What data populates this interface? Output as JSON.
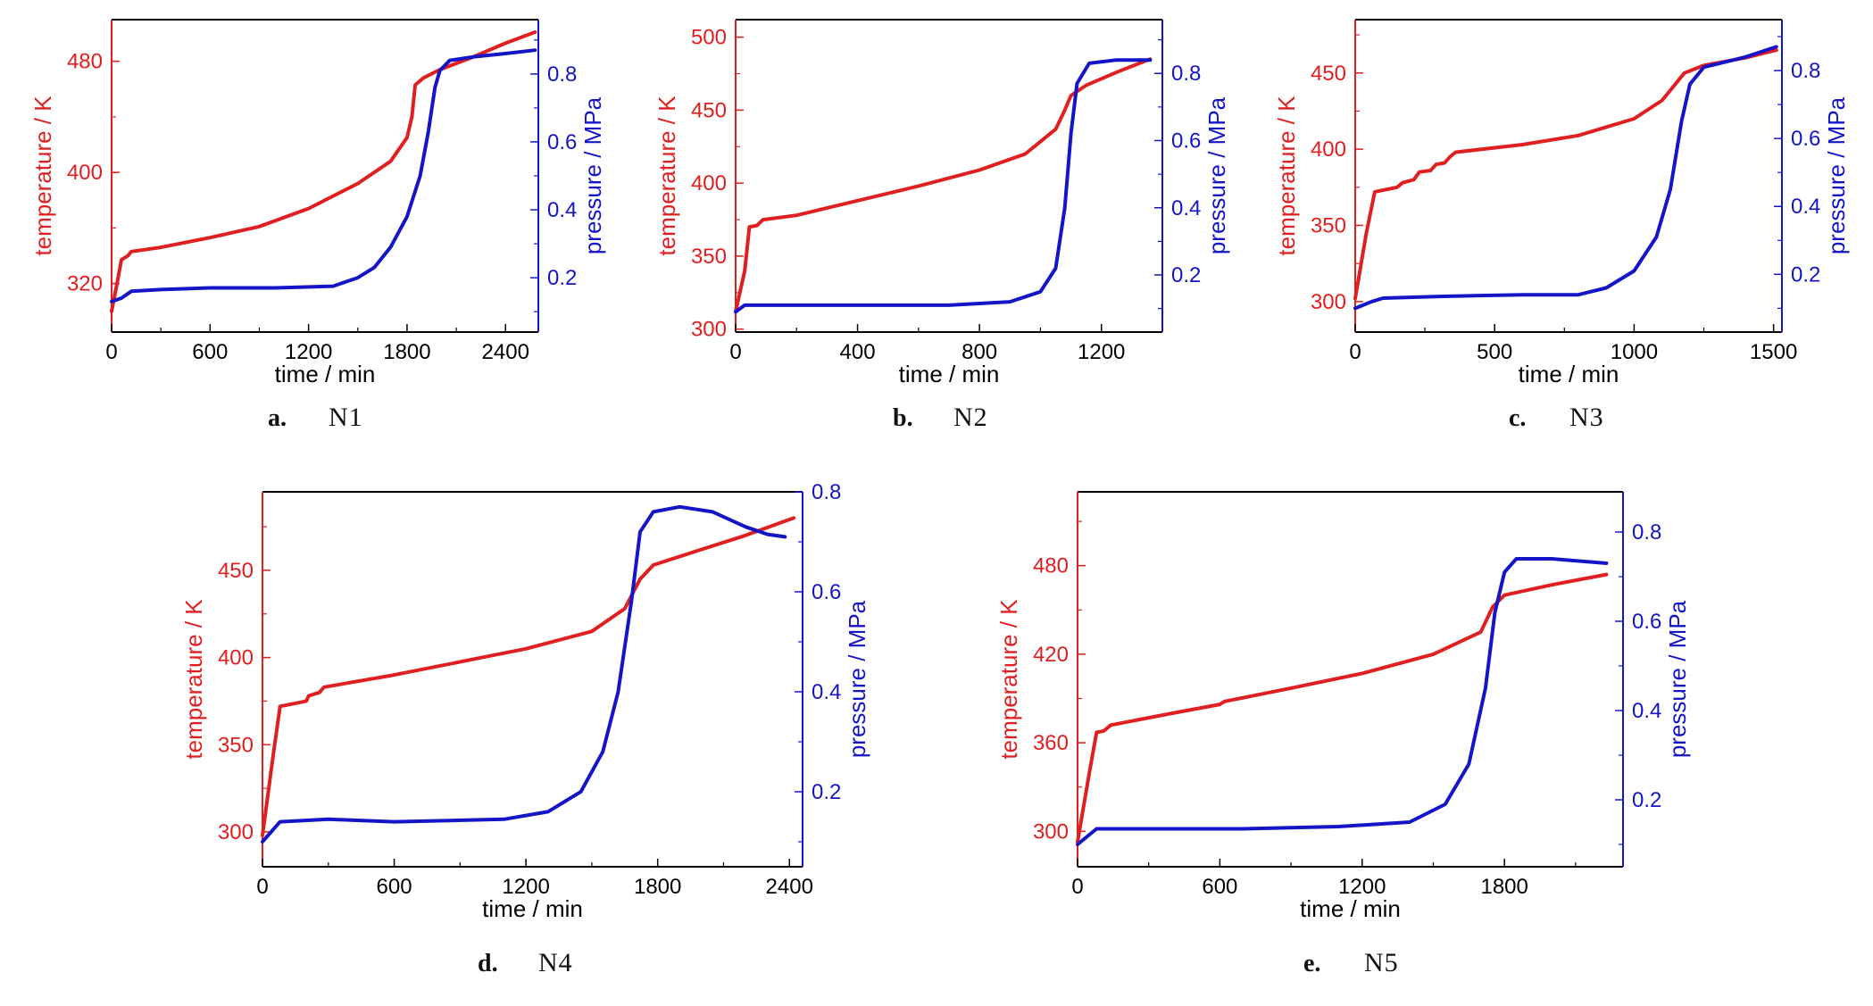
{
  "colors": {
    "temperature": "#e02020",
    "pressure": "#1515c8",
    "axis": "#000000"
  },
  "chart_data": [
    {
      "type": "line",
      "panel_letter": "a.",
      "panel_name": "N1",
      "xlabel": "time / min",
      "ylabel_left": "temperature / K",
      "ylabel_right": "pressure / MPa",
      "xlim": [
        0,
        2600
      ],
      "ylim_left": [
        285,
        510
      ],
      "ylim_right": [
        0.04,
        0.96
      ],
      "xticks": [
        0,
        600,
        1200,
        1800,
        2400
      ],
      "yticks_left": [
        320,
        400,
        480
      ],
      "yticks_right": [
        0.2,
        0.4,
        0.6,
        0.8
      ],
      "temperature": [
        [
          0,
          300
        ],
        [
          30,
          318
        ],
        [
          60,
          337
        ],
        [
          100,
          340
        ],
        [
          120,
          343
        ],
        [
          300,
          346
        ],
        [
          600,
          353
        ],
        [
          900,
          361
        ],
        [
          1200,
          374
        ],
        [
          1500,
          392
        ],
        [
          1700,
          408
        ],
        [
          1800,
          425
        ],
        [
          1830,
          440
        ],
        [
          1850,
          463
        ],
        [
          1900,
          468
        ],
        [
          2000,
          474
        ],
        [
          2200,
          483
        ],
        [
          2400,
          493
        ],
        [
          2580,
          501
        ]
      ],
      "pressure": [
        [
          0,
          0.13
        ],
        [
          60,
          0.14
        ],
        [
          120,
          0.16
        ],
        [
          300,
          0.165
        ],
        [
          600,
          0.17
        ],
        [
          1000,
          0.17
        ],
        [
          1350,
          0.175
        ],
        [
          1500,
          0.2
        ],
        [
          1600,
          0.23
        ],
        [
          1700,
          0.29
        ],
        [
          1800,
          0.38
        ],
        [
          1880,
          0.5
        ],
        [
          1930,
          0.63
        ],
        [
          1970,
          0.76
        ],
        [
          2000,
          0.81
        ],
        [
          2060,
          0.84
        ],
        [
          2200,
          0.85
        ],
        [
          2400,
          0.86
        ],
        [
          2580,
          0.87
        ]
      ]
    },
    {
      "type": "line",
      "panel_letter": "b.",
      "panel_name": "N2",
      "xlabel": "time / min",
      "ylabel_left": "temperature / K",
      "ylabel_right": "pressure / MPa",
      "xlim": [
        0,
        1400
      ],
      "ylim_left": [
        298,
        512
      ],
      "ylim_right": [
        0.03,
        0.96
      ],
      "xticks": [
        0,
        400,
        800,
        1200
      ],
      "yticks_left": [
        300,
        350,
        400,
        450,
        500
      ],
      "yticks_right": [
        0.2,
        0.4,
        0.6,
        0.8
      ],
      "temperature": [
        [
          0,
          312
        ],
        [
          30,
          340
        ],
        [
          45,
          370
        ],
        [
          70,
          371
        ],
        [
          90,
          375
        ],
        [
          200,
          378
        ],
        [
          400,
          388
        ],
        [
          600,
          398
        ],
        [
          800,
          409
        ],
        [
          950,
          420
        ],
        [
          1050,
          437
        ],
        [
          1080,
          450
        ],
        [
          1100,
          460
        ],
        [
          1150,
          467
        ],
        [
          1250,
          476
        ],
        [
          1360,
          485
        ]
      ],
      "pressure": [
        [
          0,
          0.09
        ],
        [
          30,
          0.11
        ],
        [
          100,
          0.11
        ],
        [
          400,
          0.11
        ],
        [
          700,
          0.11
        ],
        [
          900,
          0.12
        ],
        [
          1000,
          0.15
        ],
        [
          1050,
          0.22
        ],
        [
          1080,
          0.4
        ],
        [
          1100,
          0.62
        ],
        [
          1120,
          0.77
        ],
        [
          1160,
          0.83
        ],
        [
          1250,
          0.84
        ],
        [
          1360,
          0.84
        ]
      ]
    },
    {
      "type": "line",
      "panel_letter": "c.",
      "panel_name": "N3",
      "xlabel": "time / min",
      "ylabel_left": "temperature / K",
      "ylabel_right": "pressure / MPa",
      "xlim": [
        0,
        1530
      ],
      "ylim_left": [
        280,
        485
      ],
      "ylim_right": [
        0.03,
        0.95
      ],
      "xticks": [
        0,
        500,
        1000,
        1500
      ],
      "yticks_left": [
        300,
        350,
        400,
        450
      ],
      "yticks_right": [
        0.2,
        0.4,
        0.6,
        0.8
      ],
      "temperature": [
        [
          0,
          302
        ],
        [
          40,
          345
        ],
        [
          70,
          372
        ],
        [
          150,
          375
        ],
        [
          170,
          378
        ],
        [
          210,
          380
        ],
        [
          230,
          385
        ],
        [
          270,
          386
        ],
        [
          290,
          390
        ],
        [
          320,
          391
        ],
        [
          340,
          395
        ],
        [
          360,
          398
        ],
        [
          600,
          403
        ],
        [
          800,
          409
        ],
        [
          1000,
          420
        ],
        [
          1100,
          432
        ],
        [
          1180,
          450
        ],
        [
          1250,
          455
        ],
        [
          1400,
          460
        ],
        [
          1510,
          465
        ]
      ],
      "pressure": [
        [
          0,
          0.1
        ],
        [
          60,
          0.12
        ],
        [
          100,
          0.13
        ],
        [
          300,
          0.135
        ],
        [
          600,
          0.14
        ],
        [
          800,
          0.14
        ],
        [
          900,
          0.16
        ],
        [
          1000,
          0.21
        ],
        [
          1080,
          0.31
        ],
        [
          1130,
          0.45
        ],
        [
          1170,
          0.65
        ],
        [
          1200,
          0.76
        ],
        [
          1250,
          0.81
        ],
        [
          1400,
          0.84
        ],
        [
          1510,
          0.87
        ]
      ]
    },
    {
      "type": "line",
      "panel_letter": "d.",
      "panel_name": "N4",
      "xlabel": "time / min",
      "ylabel_left": "temperature / K",
      "ylabel_right": "pressure / MPa",
      "xlim": [
        0,
        2460
      ],
      "ylim_left": [
        280,
        495
      ],
      "ylim_right": [
        0.05,
        0.8
      ],
      "xticks": [
        0,
        600,
        1200,
        1800,
        2400
      ],
      "yticks_left": [
        300,
        350,
        400,
        450
      ],
      "yticks_right": [
        0.2,
        0.4,
        0.6,
        0.8
      ],
      "temperature": [
        [
          0,
          298
        ],
        [
          50,
          345
        ],
        [
          80,
          372
        ],
        [
          200,
          375
        ],
        [
          210,
          378
        ],
        [
          260,
          380
        ],
        [
          280,
          383
        ],
        [
          600,
          390
        ],
        [
          1000,
          400
        ],
        [
          1200,
          405
        ],
        [
          1500,
          415
        ],
        [
          1650,
          428
        ],
        [
          1720,
          445
        ],
        [
          1780,
          453
        ],
        [
          2000,
          462
        ],
        [
          2200,
          470
        ],
        [
          2420,
          480
        ]
      ],
      "pressure": [
        [
          0,
          0.1
        ],
        [
          80,
          0.14
        ],
        [
          300,
          0.145
        ],
        [
          600,
          0.14
        ],
        [
          1100,
          0.145
        ],
        [
          1300,
          0.16
        ],
        [
          1450,
          0.2
        ],
        [
          1550,
          0.28
        ],
        [
          1620,
          0.4
        ],
        [
          1680,
          0.58
        ],
        [
          1720,
          0.72
        ],
        [
          1780,
          0.76
        ],
        [
          1900,
          0.77
        ],
        [
          2050,
          0.76
        ],
        [
          2200,
          0.73
        ],
        [
          2300,
          0.715
        ],
        [
          2380,
          0.71
        ]
      ]
    },
    {
      "type": "line",
      "panel_letter": "e.",
      "panel_name": "N5",
      "xlabel": "time / min",
      "ylabel_left": "temperature / K",
      "ylabel_right": "pressure / MPa",
      "xlim": [
        0,
        2300
      ],
      "ylim_left": [
        276,
        530
      ],
      "ylim_right": [
        0.05,
        0.89
      ],
      "xticks": [
        0,
        600,
        1200,
        1800
      ],
      "yticks_left": [
        300,
        360,
        420,
        480
      ],
      "yticks_right": [
        0.2,
        0.4,
        0.6,
        0.8
      ],
      "temperature": [
        [
          0,
          293
        ],
        [
          50,
          340
        ],
        [
          80,
          367
        ],
        [
          110,
          368
        ],
        [
          140,
          372
        ],
        [
          400,
          380
        ],
        [
          600,
          386
        ],
        [
          620,
          388
        ],
        [
          900,
          397
        ],
        [
          1200,
          407
        ],
        [
          1500,
          420
        ],
        [
          1700,
          435
        ],
        [
          1750,
          452
        ],
        [
          1800,
          460
        ],
        [
          2000,
          467
        ],
        [
          2230,
          474
        ]
      ],
      "pressure": [
        [
          0,
          0.1
        ],
        [
          80,
          0.135
        ],
        [
          300,
          0.135
        ],
        [
          700,
          0.135
        ],
        [
          1100,
          0.14
        ],
        [
          1400,
          0.15
        ],
        [
          1550,
          0.19
        ],
        [
          1650,
          0.28
        ],
        [
          1720,
          0.45
        ],
        [
          1760,
          0.62
        ],
        [
          1800,
          0.71
        ],
        [
          1850,
          0.74
        ],
        [
          2000,
          0.74
        ],
        [
          2230,
          0.73
        ]
      ]
    }
  ]
}
